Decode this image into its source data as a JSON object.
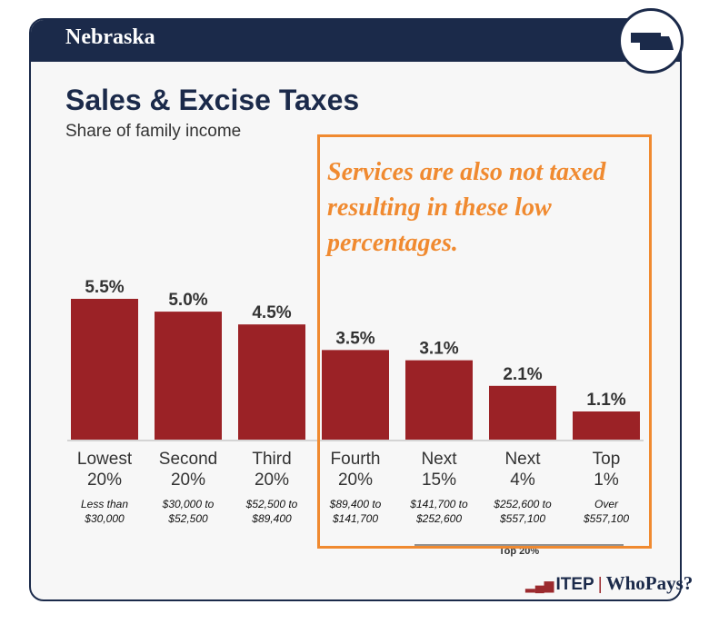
{
  "header": {
    "state": "Nebraska",
    "badge_icon": "nebraska-state-map-icon"
  },
  "title": "Sales & Excise Taxes",
  "subtitle": "Share of family income",
  "annotation": "Services are also not taxed resulting in these low percentages.",
  "bracket_label": "Top 20%",
  "logo": {
    "itep": "ITEP",
    "separator": "|",
    "whopays": "WhoPays?"
  },
  "colors": {
    "bar": "#9b2226",
    "header": "#1b2a4a",
    "annotation": "#f08a30"
  },
  "chart_data": {
    "type": "bar",
    "title": "Sales & Excise Taxes",
    "subtitle": "Share of family income",
    "categories": [
      "Lowest 20%",
      "Second 20%",
      "Third 20%",
      "Fourth 20%",
      "Next 15%",
      "Next 4%",
      "Top 1%"
    ],
    "category_lines": [
      [
        "Lowest",
        "20%"
      ],
      [
        "Second",
        "20%"
      ],
      [
        "Third",
        "20%"
      ],
      [
        "Fourth",
        "20%"
      ],
      [
        "Next",
        "15%"
      ],
      [
        "Next",
        "4%"
      ],
      [
        "Top",
        "1%"
      ]
    ],
    "income_ranges": [
      [
        "Less than",
        "$30,000"
      ],
      [
        "$30,000 to",
        "$52,500"
      ],
      [
        "$52,500 to",
        "$89,400"
      ],
      [
        "$89,400 to",
        "$141,700"
      ],
      [
        "$141,700 to",
        "$252,600"
      ],
      [
        "$252,600 to",
        "$557,100"
      ],
      [
        "Over",
        "$557,100"
      ]
    ],
    "values": [
      5.5,
      5.0,
      4.5,
      3.5,
      3.1,
      2.1,
      1.1
    ],
    "value_labels": [
      "5.5%",
      "5.0%",
      "4.5%",
      "3.5%",
      "3.1%",
      "2.1%",
      "1.1%"
    ],
    "ylim": [
      0,
      5.5
    ],
    "grid": false,
    "legend": "none"
  }
}
